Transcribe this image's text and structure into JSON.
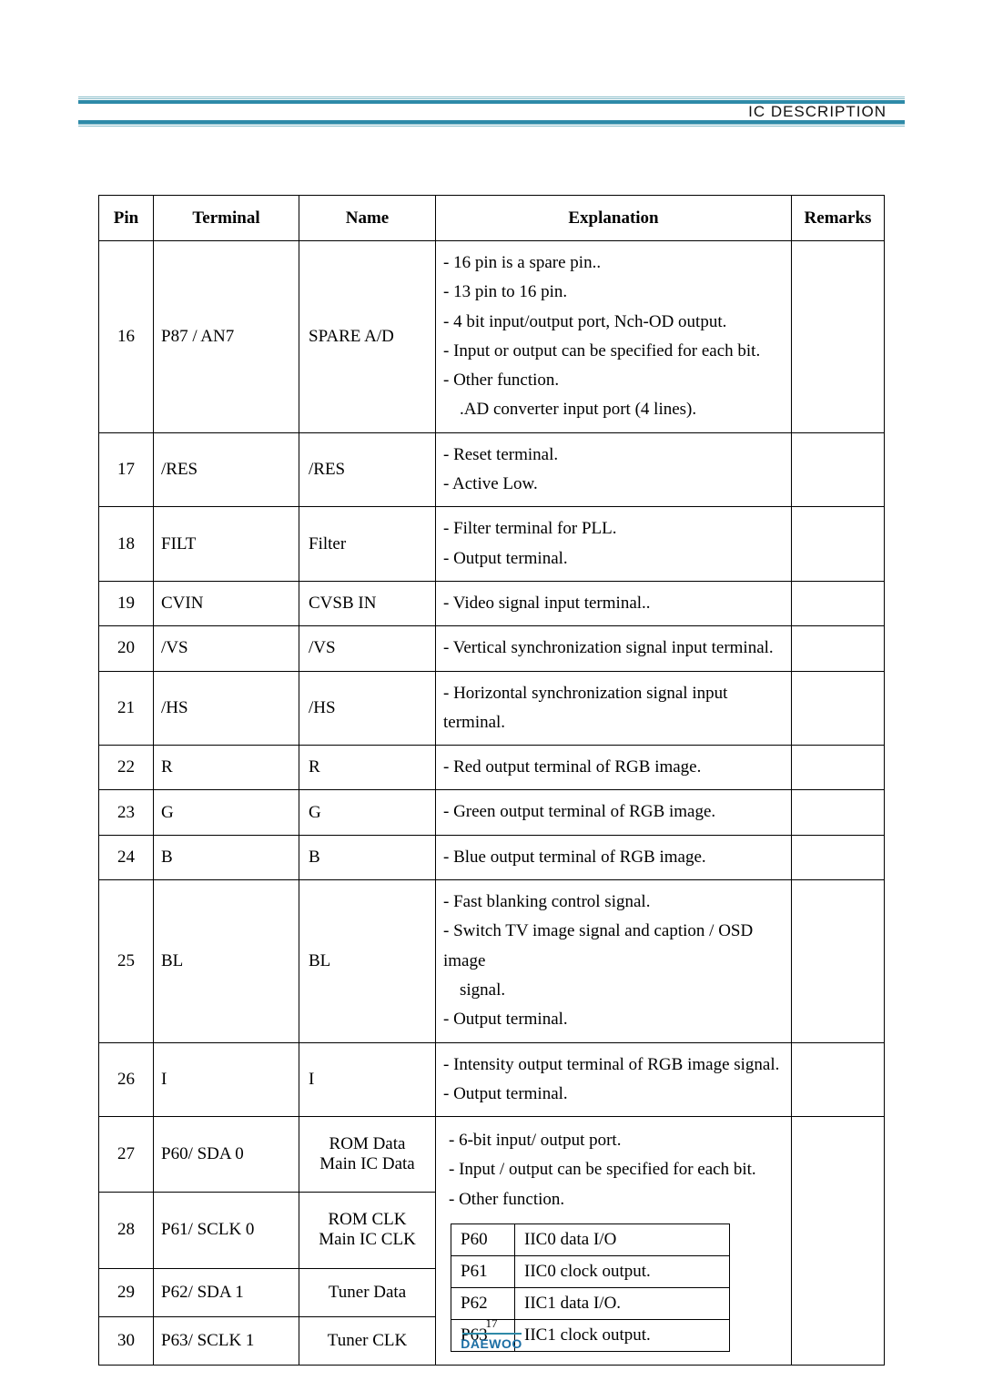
{
  "header": {
    "title": "IC DESCRIPTION"
  },
  "colors": {
    "rule": "#2e8aa8",
    "rule_light": "#88bcc9",
    "logo": "#1b6ea4"
  },
  "table": {
    "headers": {
      "pin": "Pin",
      "terminal": "Terminal",
      "name": "Name",
      "explanation": "Explanation",
      "remarks": "Remarks"
    },
    "rows": [
      {
        "pin": "16",
        "terminal": "P87 / AN7",
        "name": "SPARE A/D",
        "explanation": [
          "- 16 pin is a spare pin..",
          "- 13 pin to 16 pin.",
          "- 4 bit input/output port, Nch-OD output.",
          "- Input or output can be specified for each bit.",
          "- Other function.",
          ".AD converter input port (4 lines)."
        ],
        "remarks": ""
      },
      {
        "pin": "17",
        "terminal": "/RES",
        "name": "/RES",
        "explanation": [
          "- Reset terminal.",
          "- Active Low."
        ],
        "remarks": ""
      },
      {
        "pin": "18",
        "terminal": "FILT",
        "name": "Filter",
        "explanation": [
          "- Filter terminal for PLL.",
          "- Output terminal."
        ],
        "remarks": ""
      },
      {
        "pin": "19",
        "terminal": "CVIN",
        "name": "CVSB IN",
        "explanation": [
          "- Video signal input terminal.."
        ],
        "remarks": ""
      },
      {
        "pin": "20",
        "terminal": "/VS",
        "name": "/VS",
        "explanation": [
          "- Vertical synchronization signal input terminal."
        ],
        "remarks": ""
      },
      {
        "pin": "21",
        "terminal": "/HS",
        "name": "/HS",
        "explanation": [
          "- Horizontal synchronization signal input terminal."
        ],
        "remarks": ""
      },
      {
        "pin": "22",
        "terminal": "R",
        "name": "R",
        "explanation": [
          "- Red output terminal of RGB image."
        ],
        "remarks": ""
      },
      {
        "pin": "23",
        "terminal": "G",
        "name": "G",
        "explanation": [
          "- Green output terminal of RGB image."
        ],
        "remarks": ""
      },
      {
        "pin": "24",
        "terminal": "B",
        "name": "B",
        "explanation": [
          "- Blue output terminal of RGB image."
        ],
        "remarks": ""
      },
      {
        "pin": "25",
        "terminal": "BL",
        "name": "BL",
        "explanation": [
          "- Fast blanking control signal.",
          "- Switch TV image signal and caption / OSD image",
          "  signal.",
          "- Output terminal."
        ],
        "remarks": ""
      },
      {
        "pin": "26",
        "terminal": "I",
        "name": "I",
        "explanation": [
          "- Intensity output terminal of RGB image signal.",
          "- Output terminal."
        ],
        "remarks": ""
      }
    ],
    "group": {
      "intro": [
        "- 6-bit input/ output port.",
        "- Input / output can be specified for each bit.",
        "- Other function."
      ],
      "inner": [
        {
          "p": "P60",
          "d": "IIC0 data I/O"
        },
        {
          "p": "P61",
          "d": "IIC0 clock output."
        },
        {
          "p": "P62",
          "d": "IIC1 data I/O."
        },
        {
          "p": "P63",
          "d": "IIC1 clock output."
        }
      ],
      "rows": [
        {
          "pin": "27",
          "terminal": "P60/ SDA 0",
          "name1": "ROM Data",
          "name2": "Main IC Data"
        },
        {
          "pin": "28",
          "terminal": "P61/ SCLK 0",
          "name1": "ROM CLK",
          "name2": "Main IC CLK"
        },
        {
          "pin": "29",
          "terminal": "P62/ SDA 1",
          "name1": "Tuner Data",
          "name2": ""
        },
        {
          "pin": "30",
          "terminal": "P63/ SCLK 1",
          "name1": "Tuner CLK",
          "name2": ""
        }
      ]
    }
  },
  "footer": {
    "page": "17",
    "brand": "DAEWOO"
  }
}
